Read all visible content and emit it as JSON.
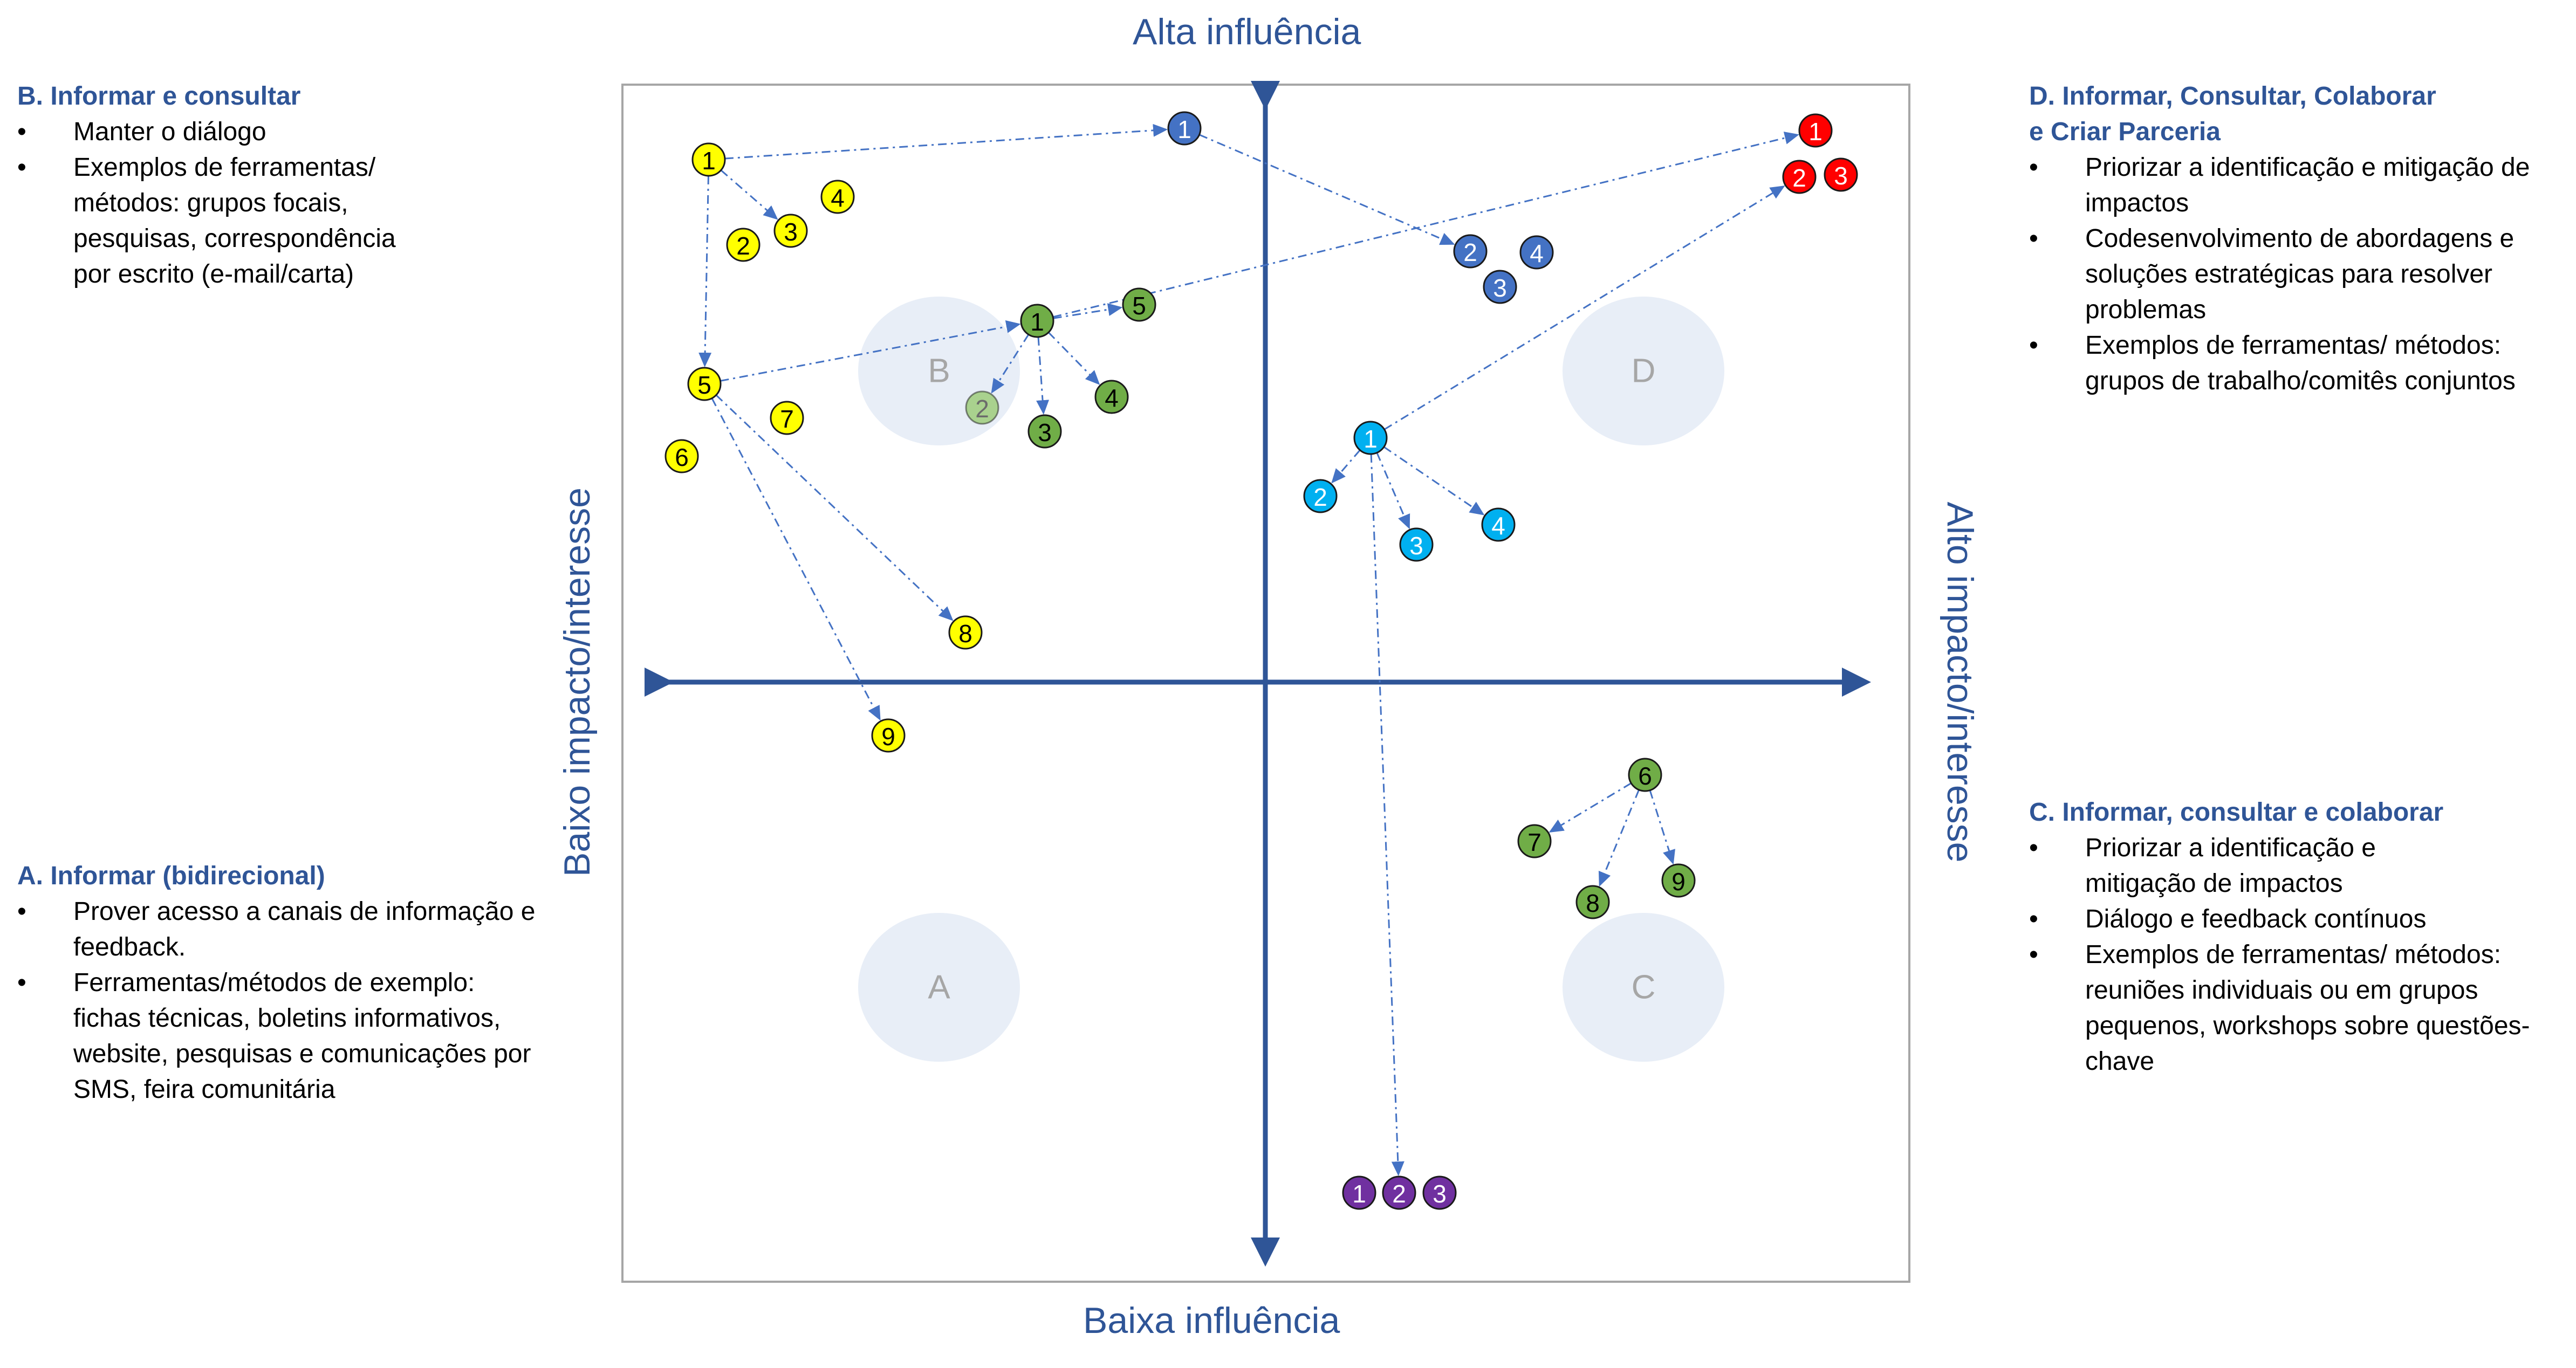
{
  "axes": {
    "top": "Alta influência",
    "bottom": "Baixa influência",
    "left": "Baixo impacto/interesse",
    "right": "Alto impacto/interesse"
  },
  "quadrants": {
    "B": {
      "title": "B. Informar e consultar",
      "bullets": [
        "Manter o diálogo",
        "Exemplos de ferramentas/ métodos: grupos focais, pesquisas, correspondência por escrito (e-mail/carta)"
      ]
    },
    "A": {
      "title": "A. Informar (bidirecional)",
      "bullets": [
        "Prover acesso a canais de informação e feedback.",
        "Ferramentas/métodos de exemplo: fichas técnicas, boletins informativos, website, pesquisas e comunicações por SMS, feira comunitária"
      ]
    },
    "D": {
      "title_line1": "D. Informar, Consultar, Colaborar",
      "title_line2": "e Criar Parceria",
      "bullets": [
        "Priorizar a identificação e mitigação de impactos",
        "Codesenvolvimento de abordagens e soluções estratégicas para resolver problemas",
        "Exemplos de ferramentas/ métodos: grupos de trabalho/comitês conjuntos"
      ]
    },
    "C": {
      "title": "C. Informar, consultar e colaborar",
      "bullets": [
        "Priorizar a identificação e mitigação de impactos",
        "Diálogo e feedback contínuos",
        "Exemplos de ferramentas/ métodos: reuniões individuais ou em grupos pequenos, workshops sobre questões-chave"
      ]
    }
  },
  "zones": [
    "B",
    "D",
    "A",
    "C"
  ],
  "colors": {
    "axis": "#2F5597",
    "arrow": "#4472C4",
    "zone_fill": "#E8EEF7",
    "yellow": "#FFFF00",
    "green": "#70AD47",
    "green_light": "#A9D18E",
    "blue_dark": "#4472C4",
    "blue_light": "#00B0F0",
    "red": "#FF0000",
    "purple": "#7030A0"
  },
  "nodes": {
    "yellow": [
      "1",
      "2",
      "3",
      "4",
      "5",
      "6",
      "7",
      "8",
      "9"
    ],
    "green_top": [
      "1",
      "2",
      "3",
      "4",
      "5"
    ],
    "blue_dark": [
      "1",
      "2",
      "3",
      "4"
    ],
    "red": [
      "1",
      "2",
      "3"
    ],
    "blue_light": [
      "1",
      "2",
      "3",
      "4"
    ],
    "green_bottom": [
      "6",
      "7",
      "8",
      "9"
    ],
    "purple": [
      "1",
      "2",
      "3"
    ]
  }
}
